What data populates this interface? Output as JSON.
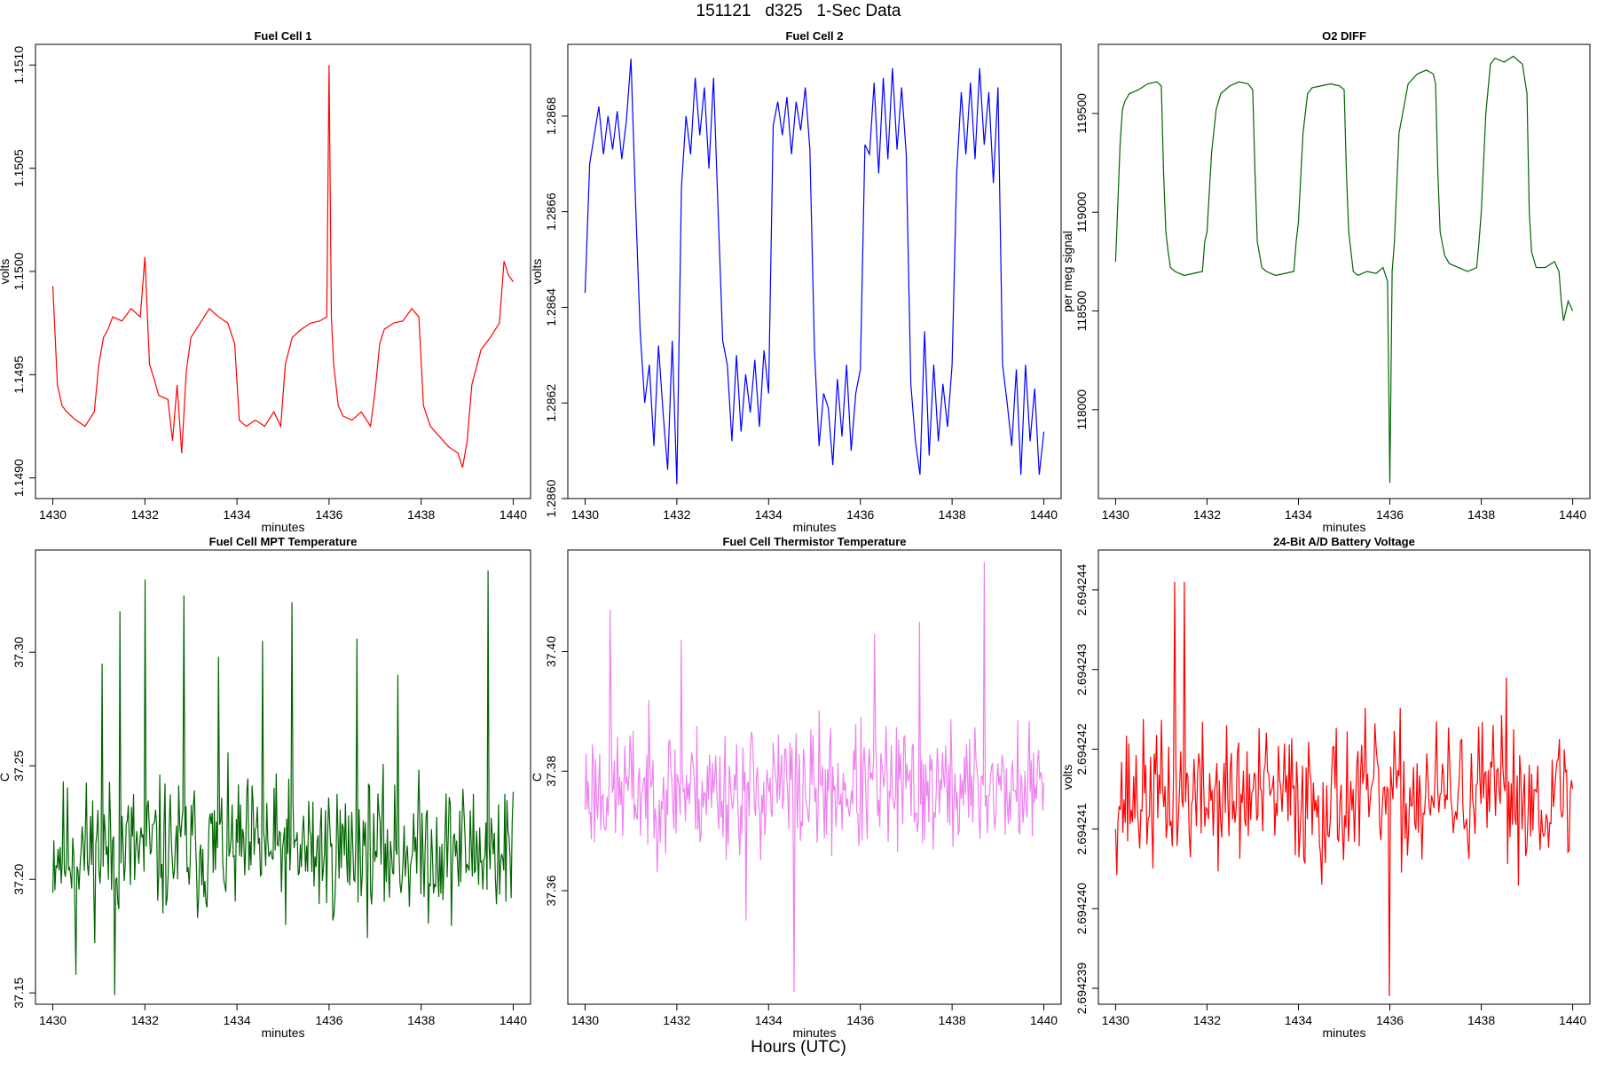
{
  "figure": {
    "title": "151121   d325   1-Sec Data",
    "footer": "Hours (UTC)"
  },
  "chart_data": [
    {
      "type": "line",
      "title": "Fuel Cell 1",
      "xlabel": "minutes",
      "ylabel": "volts",
      "color": "#ff0000",
      "xlim": [
        1430,
        1440
      ],
      "ylim": [
        1.1489,
        1.1511
      ],
      "xticks": [
        1430,
        1432,
        1434,
        1436,
        1438,
        1440
      ],
      "yticks": [
        1.149,
        1.1495,
        1.15,
        1.1505,
        1.151
      ],
      "ytick_labels": [
        "1.1490",
        "1.1495",
        "1.1500",
        "1.1505",
        "1.1510"
      ],
      "x": [
        1430.0,
        1430.1,
        1430.2,
        1430.3,
        1430.5,
        1430.7,
        1430.9,
        1431.0,
        1431.1,
        1431.2,
        1431.3,
        1431.5,
        1431.7,
        1431.9,
        1432.0,
        1432.1,
        1432.2,
        1432.3,
        1432.5,
        1432.6,
        1432.7,
        1432.8,
        1432.9,
        1433.0,
        1433.2,
        1433.4,
        1433.6,
        1433.8,
        1433.95,
        1434.05,
        1434.2,
        1434.4,
        1434.6,
        1434.8,
        1434.95,
        1435.05,
        1435.2,
        1435.4,
        1435.6,
        1435.8,
        1435.95,
        1436.0,
        1436.05,
        1436.1,
        1436.2,
        1436.3,
        1436.5,
        1436.7,
        1436.9,
        1437.0,
        1437.1,
        1437.2,
        1437.4,
        1437.6,
        1437.8,
        1437.95,
        1438.05,
        1438.2,
        1438.4,
        1438.6,
        1438.8,
        1438.9,
        1439.0,
        1439.1,
        1439.3,
        1439.5,
        1439.7,
        1439.8,
        1439.9,
        1440.0
      ],
      "y": [
        1.14993,
        1.14945,
        1.14935,
        1.14932,
        1.14928,
        1.14925,
        1.14932,
        1.14955,
        1.14968,
        1.14972,
        1.14978,
        1.14976,
        1.14982,
        1.14978,
        1.15007,
        1.14955,
        1.14948,
        1.1494,
        1.14938,
        1.14918,
        1.14945,
        1.14912,
        1.14952,
        1.14968,
        1.14975,
        1.14982,
        1.14978,
        1.14975,
        1.14965,
        1.14928,
        1.14925,
        1.14928,
        1.14925,
        1.14932,
        1.14925,
        1.14955,
        1.14968,
        1.14972,
        1.14975,
        1.14976,
        1.14978,
        1.151,
        1.14978,
        1.14955,
        1.14935,
        1.1493,
        1.14928,
        1.14932,
        1.14925,
        1.14942,
        1.14965,
        1.14972,
        1.14975,
        1.14976,
        1.14982,
        1.14978,
        1.14935,
        1.14925,
        1.1492,
        1.14915,
        1.14912,
        1.14905,
        1.14918,
        1.14945,
        1.14962,
        1.14968,
        1.14975,
        1.15005,
        1.14998,
        1.14995
      ]
    },
    {
      "type": "line",
      "title": "Fuel Cell 2",
      "xlabel": "minutes",
      "ylabel": "volts",
      "color": "#0000ff",
      "xlim": [
        1430,
        1440
      ],
      "ylim": [
        1.286,
        1.28695
      ],
      "xticks": [
        1430,
        1432,
        1434,
        1436,
        1438,
        1440
      ],
      "yticks": [
        1.286,
        1.2862,
        1.2864,
        1.2866,
        1.2868
      ],
      "ytick_labels": [
        "1.2860",
        "1.2862",
        "1.2864",
        "1.2866",
        "1.2868"
      ],
      "x": [
        1430.0,
        1430.1,
        1430.2,
        1430.3,
        1430.4,
        1430.5,
        1430.6,
        1430.7,
        1430.8,
        1430.9,
        1431.0,
        1431.1,
        1431.2,
        1431.3,
        1431.4,
        1431.5,
        1431.6,
        1431.7,
        1431.8,
        1431.9,
        1432.0,
        1432.1,
        1432.2,
        1432.3,
        1432.4,
        1432.5,
        1432.6,
        1432.7,
        1432.8,
        1432.9,
        1433.0,
        1433.1,
        1433.2,
        1433.3,
        1433.4,
        1433.5,
        1433.6,
        1433.7,
        1433.8,
        1433.9,
        1434.0,
        1434.1,
        1434.2,
        1434.3,
        1434.4,
        1434.5,
        1434.6,
        1434.7,
        1434.8,
        1434.9,
        1435.0,
        1435.1,
        1435.2,
        1435.3,
        1435.4,
        1435.5,
        1435.6,
        1435.7,
        1435.8,
        1435.9,
        1436.0,
        1436.1,
        1436.2,
        1436.3,
        1436.4,
        1436.5,
        1436.6,
        1436.7,
        1436.8,
        1436.9,
        1437.0,
        1437.1,
        1437.2,
        1437.3,
        1437.4,
        1437.5,
        1437.6,
        1437.7,
        1437.8,
        1437.9,
        1438.0,
        1438.1,
        1438.2,
        1438.3,
        1438.4,
        1438.5,
        1438.6,
        1438.7,
        1438.8,
        1438.9,
        1439.0,
        1439.1,
        1439.2,
        1439.3,
        1439.4,
        1439.5,
        1439.6,
        1439.7,
        1439.8,
        1439.9,
        1440.0
      ],
      "y": [
        1.28643,
        1.2867,
        1.28676,
        1.28682,
        1.28672,
        1.2868,
        1.28673,
        1.28681,
        1.28671,
        1.28679,
        1.28692,
        1.28662,
        1.28635,
        1.2862,
        1.28628,
        1.28611,
        1.28632,
        1.28618,
        1.28606,
        1.28633,
        1.28603,
        1.28665,
        1.2868,
        1.28672,
        1.28688,
        1.28676,
        1.28686,
        1.28669,
        1.28688,
        1.2866,
        1.28633,
        1.28628,
        1.28612,
        1.2863,
        1.28614,
        1.28626,
        1.28618,
        1.28629,
        1.28615,
        1.28631,
        1.28622,
        1.28678,
        1.28683,
        1.28676,
        1.28684,
        1.28672,
        1.28683,
        1.28677,
        1.28686,
        1.28673,
        1.28631,
        1.28611,
        1.28622,
        1.28619,
        1.28607,
        1.28625,
        1.28613,
        1.28628,
        1.2861,
        1.28622,
        1.28627,
        1.28674,
        1.28672,
        1.28687,
        1.28668,
        1.28688,
        1.28671,
        1.2869,
        1.28673,
        1.28686,
        1.28672,
        1.28624,
        1.28612,
        1.28605,
        1.28635,
        1.28609,
        1.28628,
        1.28612,
        1.28624,
        1.28615,
        1.28628,
        1.28668,
        1.28685,
        1.28672,
        1.28687,
        1.28671,
        1.2869,
        1.28674,
        1.28685,
        1.28666,
        1.28686,
        1.28628,
        1.2862,
        1.28611,
        1.28627,
        1.28605,
        1.28628,
        1.28612,
        1.28623,
        1.28605,
        1.28614
      ]
    },
    {
      "type": "line",
      "title": "O2 DIFF",
      "xlabel": "minutes",
      "ylabel": "per meg signal",
      "color": "#006400",
      "xlim": [
        1430,
        1440
      ],
      "ylim": [
        117550,
        119850
      ],
      "xticks": [
        1430,
        1432,
        1434,
        1436,
        1438,
        1440
      ],
      "yticks": [
        118000,
        118500,
        119000,
        119500
      ],
      "ytick_labels": [
        "118000",
        "118500",
        "119000",
        "119500"
      ],
      "x": [
        1430.0,
        1430.05,
        1430.1,
        1430.15,
        1430.2,
        1430.3,
        1430.5,
        1430.7,
        1430.9,
        1431.0,
        1431.05,
        1431.1,
        1431.15,
        1431.2,
        1431.3,
        1431.5,
        1431.7,
        1431.9,
        1431.95,
        1432.0,
        1432.1,
        1432.2,
        1432.3,
        1432.5,
        1432.7,
        1432.9,
        1433.0,
        1433.05,
        1433.1,
        1433.2,
        1433.3,
        1433.5,
        1433.7,
        1433.9,
        1433.95,
        1434.0,
        1434.1,
        1434.2,
        1434.3,
        1434.5,
        1434.7,
        1434.9,
        1435.0,
        1435.05,
        1435.1,
        1435.2,
        1435.3,
        1435.5,
        1435.7,
        1435.85,
        1435.95,
        1436.0,
        1436.05,
        1436.1,
        1436.2,
        1436.4,
        1436.6,
        1436.8,
        1436.95,
        1437.0,
        1437.05,
        1437.1,
        1437.2,
        1437.3,
        1437.5,
        1437.7,
        1437.9,
        1437.95,
        1438.0,
        1438.1,
        1438.2,
        1438.3,
        1438.5,
        1438.7,
        1438.9,
        1439.0,
        1439.05,
        1439.1,
        1439.2,
        1439.4,
        1439.6,
        1439.7,
        1439.75,
        1439.8,
        1439.9,
        1440.0
      ],
      "y": [
        118750,
        119050,
        119350,
        119520,
        119560,
        119600,
        119620,
        119650,
        119660,
        119640,
        119200,
        118900,
        118800,
        118720,
        118700,
        118680,
        118690,
        118700,
        118850,
        118900,
        119300,
        119520,
        119600,
        119640,
        119660,
        119650,
        119620,
        119200,
        118850,
        118720,
        118700,
        118680,
        118690,
        118700,
        118850,
        118950,
        119400,
        119600,
        119630,
        119640,
        119650,
        119640,
        119620,
        119200,
        118900,
        118700,
        118680,
        118700,
        118690,
        118720,
        118650,
        117630,
        118700,
        118850,
        119400,
        119650,
        119700,
        119720,
        119700,
        119650,
        119200,
        118900,
        118780,
        118740,
        118720,
        118700,
        118720,
        118850,
        119000,
        119500,
        119750,
        119780,
        119760,
        119790,
        119750,
        119600,
        119000,
        118800,
        118720,
        118720,
        118750,
        118700,
        118550,
        118450,
        118550,
        118500
      ]
    },
    {
      "type": "line",
      "title": "Fuel Cell MPT Temperature",
      "xlabel": "minutes",
      "ylabel": "C",
      "color": "#006400",
      "xlim": [
        1430,
        1440
      ],
      "ylim": [
        37.145,
        37.345
      ],
      "xticks": [
        1430,
        1432,
        1434,
        1436,
        1438,
        1440
      ],
      "yticks": [
        37.15,
        37.2,
        37.25,
        37.3
      ],
      "ytick_labels": [
        "37.15",
        "37.20",
        "37.25",
        "37.30"
      ],
      "noise": {
        "n": 440,
        "center": 37.213,
        "amplitude": 0.045,
        "seed": 11,
        "spikes": [
          [
            1431.08,
            37.295
          ],
          [
            1431.45,
            37.318
          ],
          [
            1432.0,
            37.332
          ],
          [
            1432.85,
            37.325
          ],
          [
            1433.6,
            37.298
          ],
          [
            1434.55,
            37.305
          ],
          [
            1435.2,
            37.322
          ],
          [
            1436.6,
            37.306
          ],
          [
            1437.5,
            37.29
          ],
          [
            1439.45,
            37.336
          ],
          [
            1431.35,
            37.149
          ],
          [
            1430.5,
            37.158
          ]
        ]
      }
    },
    {
      "type": "line",
      "title": "Fuel Cell Thermistor Temperature",
      "xlabel": "minutes",
      "ylabel": "C",
      "color": "#ee82ee",
      "xlim": [
        1430,
        1440
      ],
      "ylim": [
        37.341,
        37.417
      ],
      "xticks": [
        1430,
        1432,
        1434,
        1436,
        1438,
        1440
      ],
      "yticks": [
        37.36,
        37.38,
        37.4
      ],
      "ytick_labels": [
        "37.36",
        "37.38",
        "37.40"
      ],
      "noise": {
        "n": 440,
        "center": 37.377,
        "amplitude": 0.016,
        "seed": 23,
        "spikes": [
          [
            1430.55,
            37.407
          ],
          [
            1434.55,
            37.343
          ],
          [
            1438.7,
            37.415
          ],
          [
            1437.3,
            37.405
          ],
          [
            1432.1,
            37.402
          ],
          [
            1436.3,
            37.403
          ],
          [
            1433.5,
            37.355
          ]
        ]
      }
    },
    {
      "type": "line",
      "title": "24-Bit A/D Battery Voltage",
      "xlabel": "minutes",
      "ylabel": "volts",
      "color": "#ff0000",
      "xlim": [
        1430,
        1440
      ],
      "ylim": [
        2.6942388,
        2.6942445
      ],
      "xticks": [
        1430,
        1432,
        1434,
        1436,
        1438,
        1440
      ],
      "yticks": [
        2.694239,
        2.69424,
        2.694241,
        2.694242,
        2.694243,
        2.694244
      ],
      "ytick_labels": [
        "2.694239",
        "2.694240",
        "2.694241",
        "2.694242",
        "2.694243",
        "2.694244"
      ],
      "noise": {
        "n": 380,
        "center": 2.6942414,
        "amplitude": 1.3e-06,
        "seed": 37,
        "spikes": [
          [
            1431.3,
            2.6942441
          ],
          [
            1431.5,
            2.6942441
          ],
          [
            1436.0,
            2.6942389
          ],
          [
            1434.5,
            2.6942403
          ],
          [
            1438.55,
            2.6942429
          ]
        ]
      }
    }
  ]
}
